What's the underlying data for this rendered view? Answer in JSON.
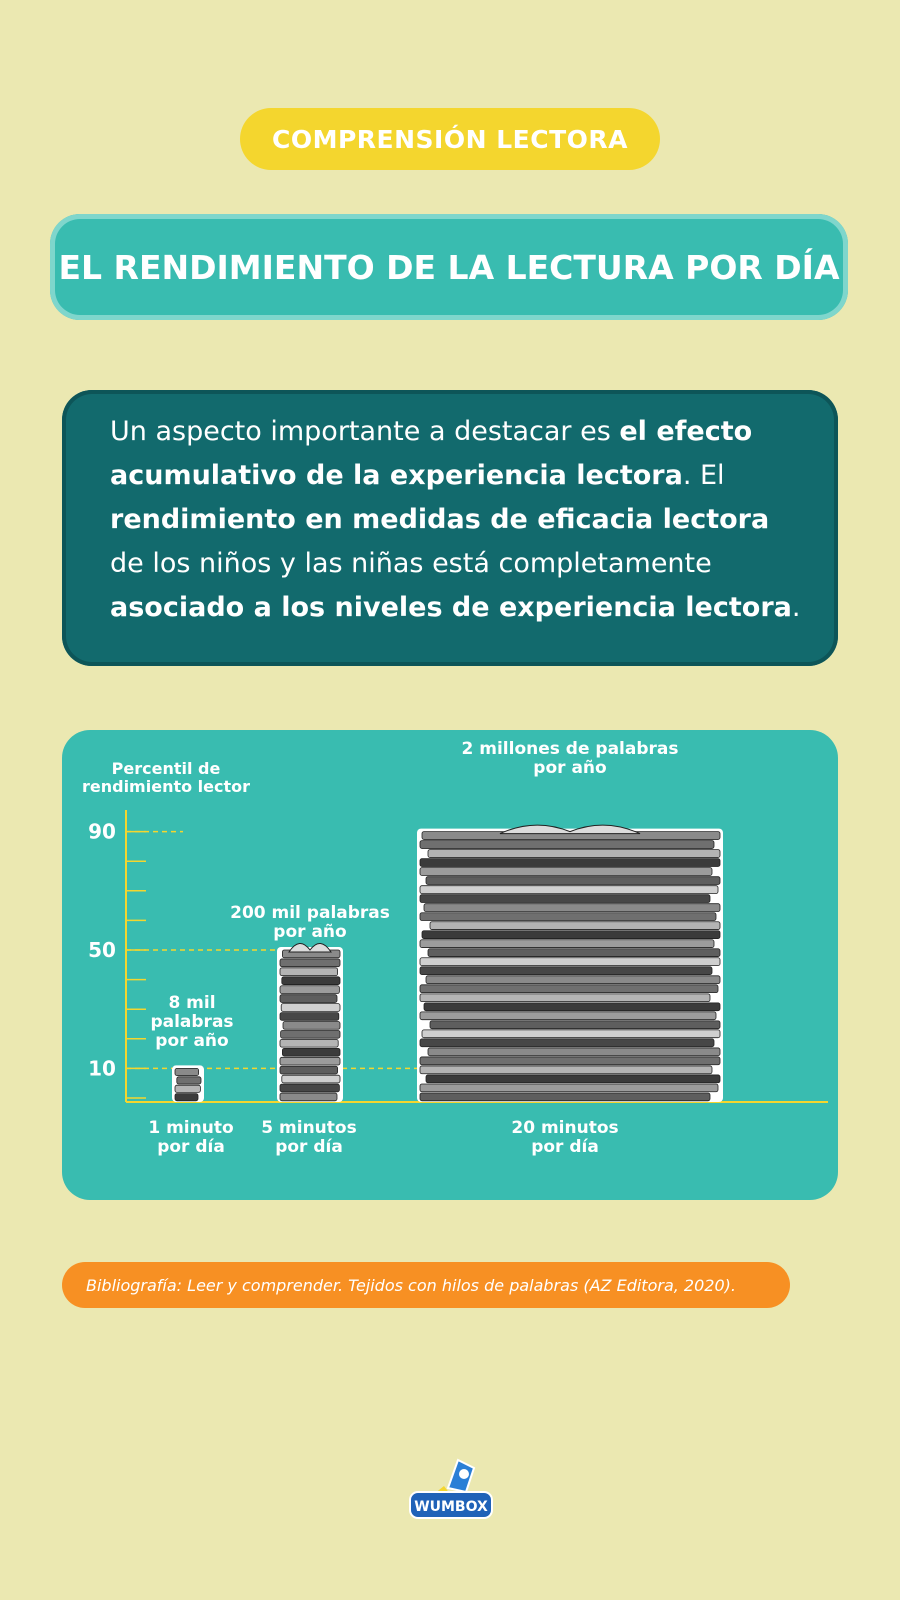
{
  "tag": "COMPRENSIÓN LECTORA",
  "title": "EL RENDIMIENTO DE LA LECTURA POR DÍA",
  "intro": {
    "t1": "Un aspecto importante a destacar es ",
    "b1": "el efecto acumulativo de la experiencia lectora",
    "t2": ". El ",
    "b2": "rendimiento en medidas de eficacia lectora",
    "t3": " de los niños y las niñas está completamente ",
    "b3": "asociado a los niveles de experiencia lectora",
    "t4": "."
  },
  "chart_data": {
    "type": "bar",
    "ylabel_line1": "Percentil de",
    "ylabel_line2": "rendimiento lector",
    "yticks": [
      "90",
      "50",
      "10"
    ],
    "ytick_values": [
      90,
      50,
      10
    ],
    "categories": [
      {
        "line1": "1 minuto",
        "line2": "por día"
      },
      {
        "line1": "5 minutos",
        "line2": "por día"
      },
      {
        "line1": "20 minutos",
        "line2": "por día"
      }
    ],
    "values": [
      10,
      50,
      90
    ],
    "annotations": [
      {
        "lines": [
          "8 mil",
          "palabras",
          "por año"
        ]
      },
      {
        "lines": [
          "200 mil palabras",
          "por año"
        ]
      },
      {
        "lines": [
          "2 millones de palabras",
          "por año"
        ]
      }
    ]
  },
  "bibliography": "Bibliografía: Leer y comprender. Tejidos con hilos de palabras (AZ Editora, 2020).",
  "logo": {
    "text": "WUMBOX",
    "icon": "rocket-icon"
  }
}
